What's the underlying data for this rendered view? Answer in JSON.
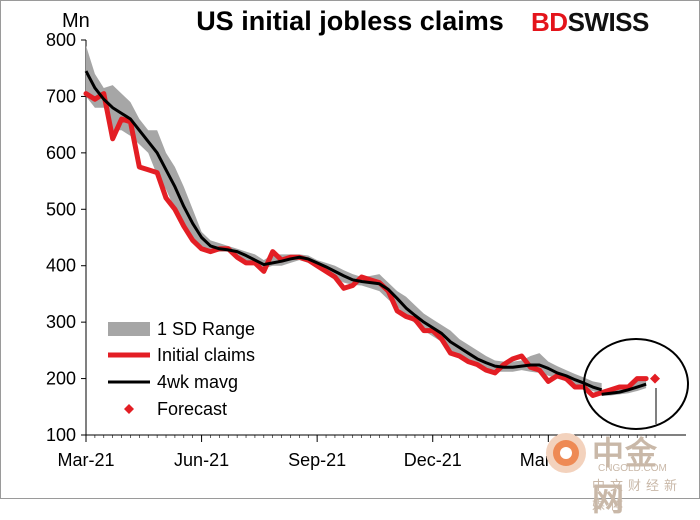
{
  "header": {
    "title": "US initial jobless claims",
    "unit": "Mn",
    "logo_bd": "BD",
    "logo_swiss": "SWISS"
  },
  "watermark": {
    "brand": "中金网",
    "site": "CNGOLD.COM",
    "sub": "中文财经新媒体"
  },
  "colors": {
    "range": "#a6a6a6",
    "claims": "#e31e24",
    "mavg": "#000000",
    "forecast": "#e31e24"
  },
  "chart_data": {
    "type": "line",
    "title": "US initial jobless claims",
    "ylabel": "Mn",
    "ylim": [
      100,
      800
    ],
    "yticks": [
      100,
      200,
      300,
      400,
      500,
      600,
      700,
      800
    ],
    "x_tick_labels": [
      "Mar-21",
      "Jun-21",
      "Sep-21",
      "Dec-21",
      "Mar-22"
    ],
    "x_tick_weeks": [
      0,
      13,
      26,
      39,
      52
    ],
    "x_range_weeks": [
      0,
      58
    ],
    "legend": [
      "1 SD Range",
      "Initial claims",
      "4wk mavg",
      "Forecast"
    ],
    "legend_position": "bottom-left",
    "week_start": "Mar-21",
    "series": [
      {
        "name": "Initial claims",
        "values": [
          705,
          695,
          705,
          625,
          660,
          655,
          575,
          570,
          565,
          520,
          500,
          470,
          445,
          430,
          425,
          430,
          430,
          415,
          405,
          405,
          390,
          425,
          410,
          415,
          415,
          410,
          400,
          390,
          380,
          360,
          365,
          380,
          375,
          370,
          355,
          320,
          310,
          305,
          285,
          285,
          270,
          245,
          240,
          230,
          225,
          215,
          210,
          225,
          235,
          240,
          220,
          215,
          195,
          205,
          200,
          185,
          185,
          170,
          175
        ]
      },
      {
        "name": "4wk mavg",
        "values": [
          745,
          715,
          695,
          680,
          670,
          660,
          640,
          620,
          600,
          570,
          540,
          505,
          475,
          450,
          435,
          430,
          428,
          425,
          418,
          410,
          402,
          405,
          408,
          412,
          415,
          412,
          405,
          398,
          390,
          382,
          375,
          372,
          370,
          368,
          358,
          342,
          325,
          312,
          300,
          290,
          280,
          265,
          255,
          245,
          235,
          228,
          222,
          220,
          220,
          222,
          224,
          224,
          218,
          210,
          205,
          198,
          192,
          185,
          180
        ]
      },
      {
        "name": "1 SD Range upper",
        "values": [
          790,
          740,
          715,
          720,
          705,
          690,
          660,
          640,
          640,
          600,
          575,
          540,
          500,
          460,
          445,
          440,
          435,
          430,
          425,
          420,
          410,
          420,
          420,
          420,
          420,
          418,
          410,
          405,
          400,
          392,
          385,
          380,
          382,
          385,
          370,
          355,
          345,
          330,
          315,
          305,
          295,
          285,
          270,
          260,
          250,
          240,
          232,
          230,
          230,
          232,
          240,
          245,
          230,
          222,
          215,
          208,
          202,
          195,
          192
        ]
      },
      {
        "name": "1 SD Range lower",
        "values": [
          700,
          680,
          680,
          640,
          640,
          630,
          615,
          600,
          560,
          535,
          500,
          470,
          445,
          435,
          425,
          425,
          425,
          415,
          410,
          400,
          395,
          400,
          400,
          405,
          410,
          405,
          398,
          388,
          378,
          370,
          366,
          365,
          360,
          355,
          340,
          328,
          310,
          298,
          285,
          275,
          265,
          248,
          240,
          232,
          222,
          216,
          212,
          212,
          212,
          215,
          212,
          210,
          205,
          200,
          195,
          188,
          184,
          178,
          172
        ]
      },
      {
        "name": "Forecast line",
        "start_week": 58,
        "values": [
          175,
          180,
          185,
          185,
          200,
          200
        ]
      },
      {
        "name": "4wk mavg forecast",
        "start_week": 58,
        "values": [
          172,
          174,
          176,
          180,
          185,
          190
        ]
      },
      {
        "name": "1 SD Range forecast upper",
        "start_week": 58,
        "values": [
          180,
          182,
          185,
          190,
          198,
          204
        ]
      },
      {
        "name": "1 SD Range forecast lower",
        "start_week": 58,
        "values": [
          170,
          170,
          172,
          174,
          178,
          183
        ]
      },
      {
        "name": "Forecast",
        "type": "marker",
        "x_week": 64,
        "values": [
          200
        ]
      }
    ]
  }
}
